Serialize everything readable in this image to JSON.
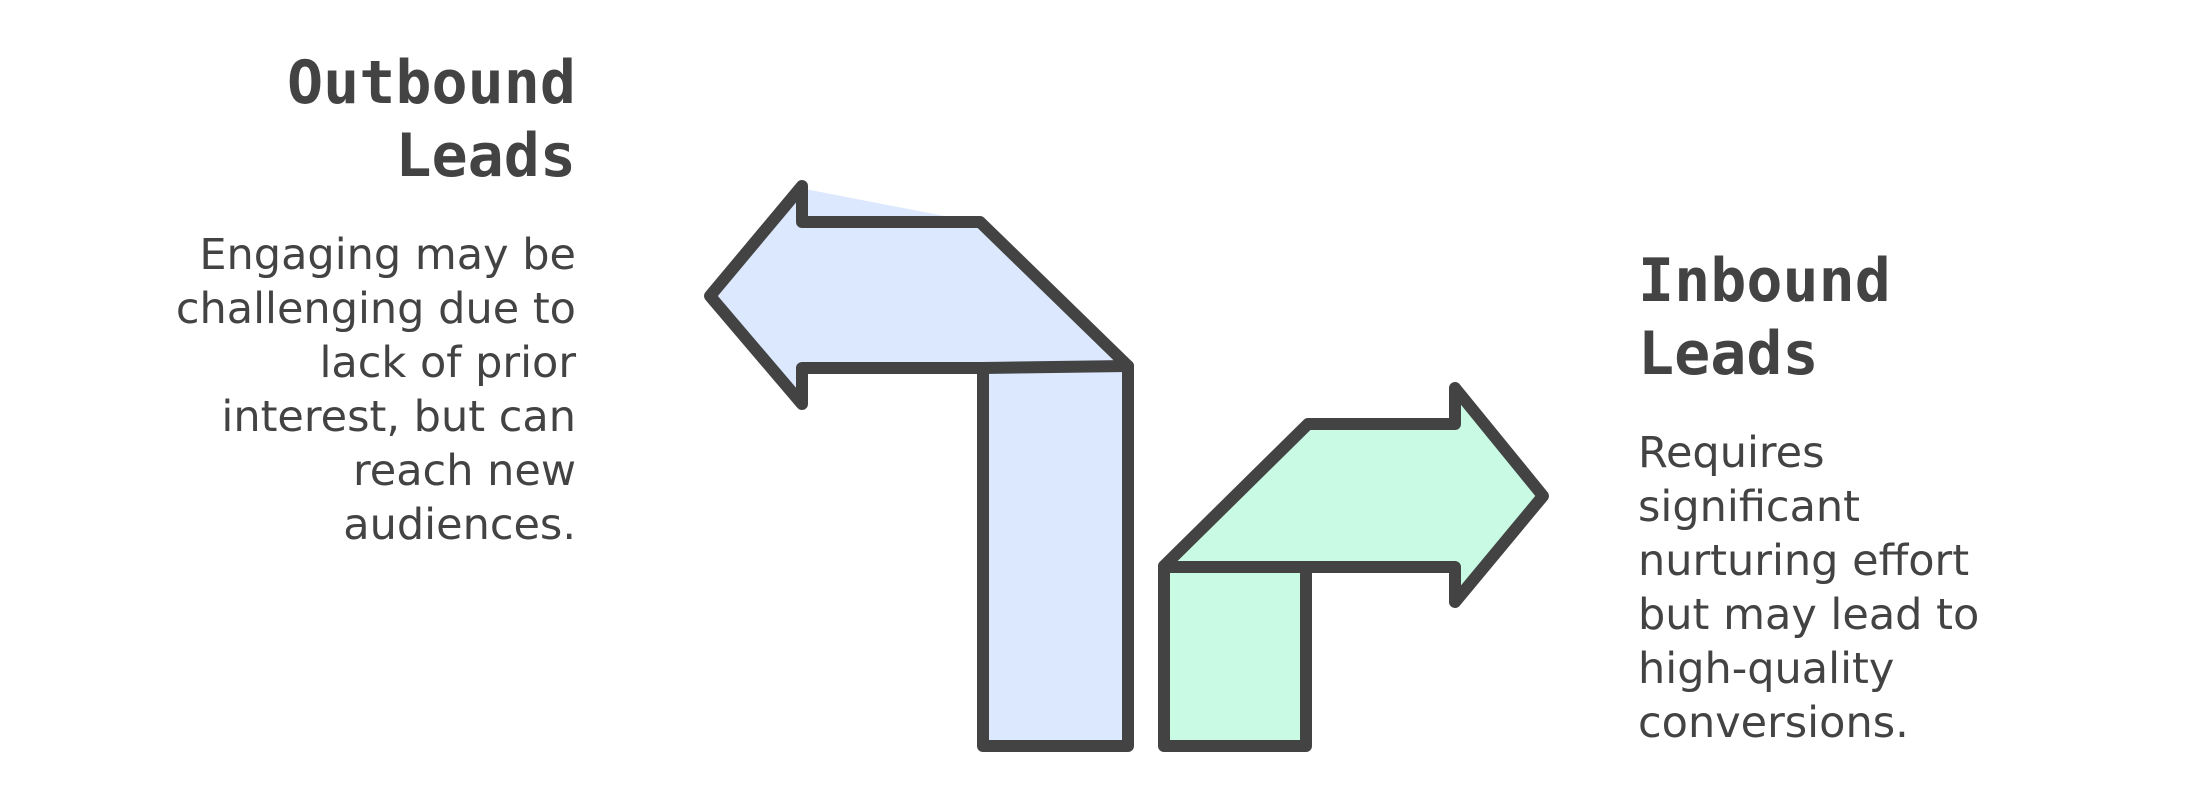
{
  "left": {
    "title_lines": [
      "Outbound",
      "Leads"
    ],
    "desc_lines": [
      "Engaging may be",
      "challenging due to",
      "lack of prior",
      "interest, but can",
      "reach new",
      "audiences."
    ]
  },
  "right": {
    "title_lines": [
      "Inbound",
      "Leads"
    ],
    "desc_lines": [
      "Requires",
      "significant",
      "nurturing effort",
      "but may lead to",
      "high-quality",
      "conversions."
    ]
  },
  "colors": {
    "outline": "#434343",
    "left_arrow_fill": "#dce8fd",
    "right_arrow_fill": "#c8fae4",
    "text": "#434343"
  },
  "icons": {
    "left_arrow": "arrow-turn-left-icon",
    "right_arrow": "arrow-turn-right-icon"
  }
}
